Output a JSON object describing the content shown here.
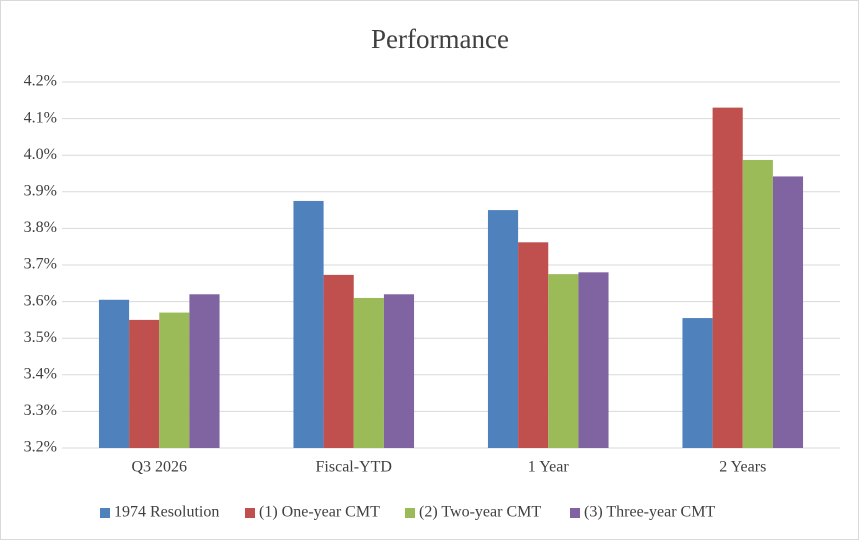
{
  "chart_data": {
    "type": "bar",
    "title": "Performance",
    "categories": [
      "Q3 2026",
      "Fiscal-YTD",
      "1 Year",
      "2 Years"
    ],
    "series": [
      {
        "name": "1974 Resolution",
        "color": "#4f81bd",
        "values": [
          3.605,
          3.875,
          3.85,
          3.555
        ]
      },
      {
        "name": "(1) One-year CMT",
        "color": "#c0504d",
        "values": [
          3.55,
          3.673,
          3.762,
          4.13
        ]
      },
      {
        "name": "(2) Two-year CMT",
        "color": "#9bbb59",
        "values": [
          3.57,
          3.61,
          3.675,
          3.987
        ]
      },
      {
        "name": "(3) Three-year CMT",
        "color": "#8064a2",
        "values": [
          3.62,
          3.62,
          3.68,
          3.942
        ]
      }
    ],
    "ylim": [
      3.2,
      4.2
    ],
    "yticks": [
      {
        "value": 3.2,
        "label": "3.2%"
      },
      {
        "value": 3.3,
        "label": "3.3%"
      },
      {
        "value": 3.4,
        "label": "3.4%"
      },
      {
        "value": 3.5,
        "label": "3.5%"
      },
      {
        "value": 3.6,
        "label": "3.6%"
      },
      {
        "value": 3.7,
        "label": "3.7%"
      },
      {
        "value": 3.8,
        "label": "3.8%"
      },
      {
        "value": 3.9,
        "label": "3.9%"
      },
      {
        "value": 4.0,
        "label": "4.0%"
      },
      {
        "value": 4.1,
        "label": "4.1%"
      },
      {
        "value": 4.2,
        "label": "4.2%"
      }
    ],
    "grid": true,
    "legend": "bottom"
  }
}
